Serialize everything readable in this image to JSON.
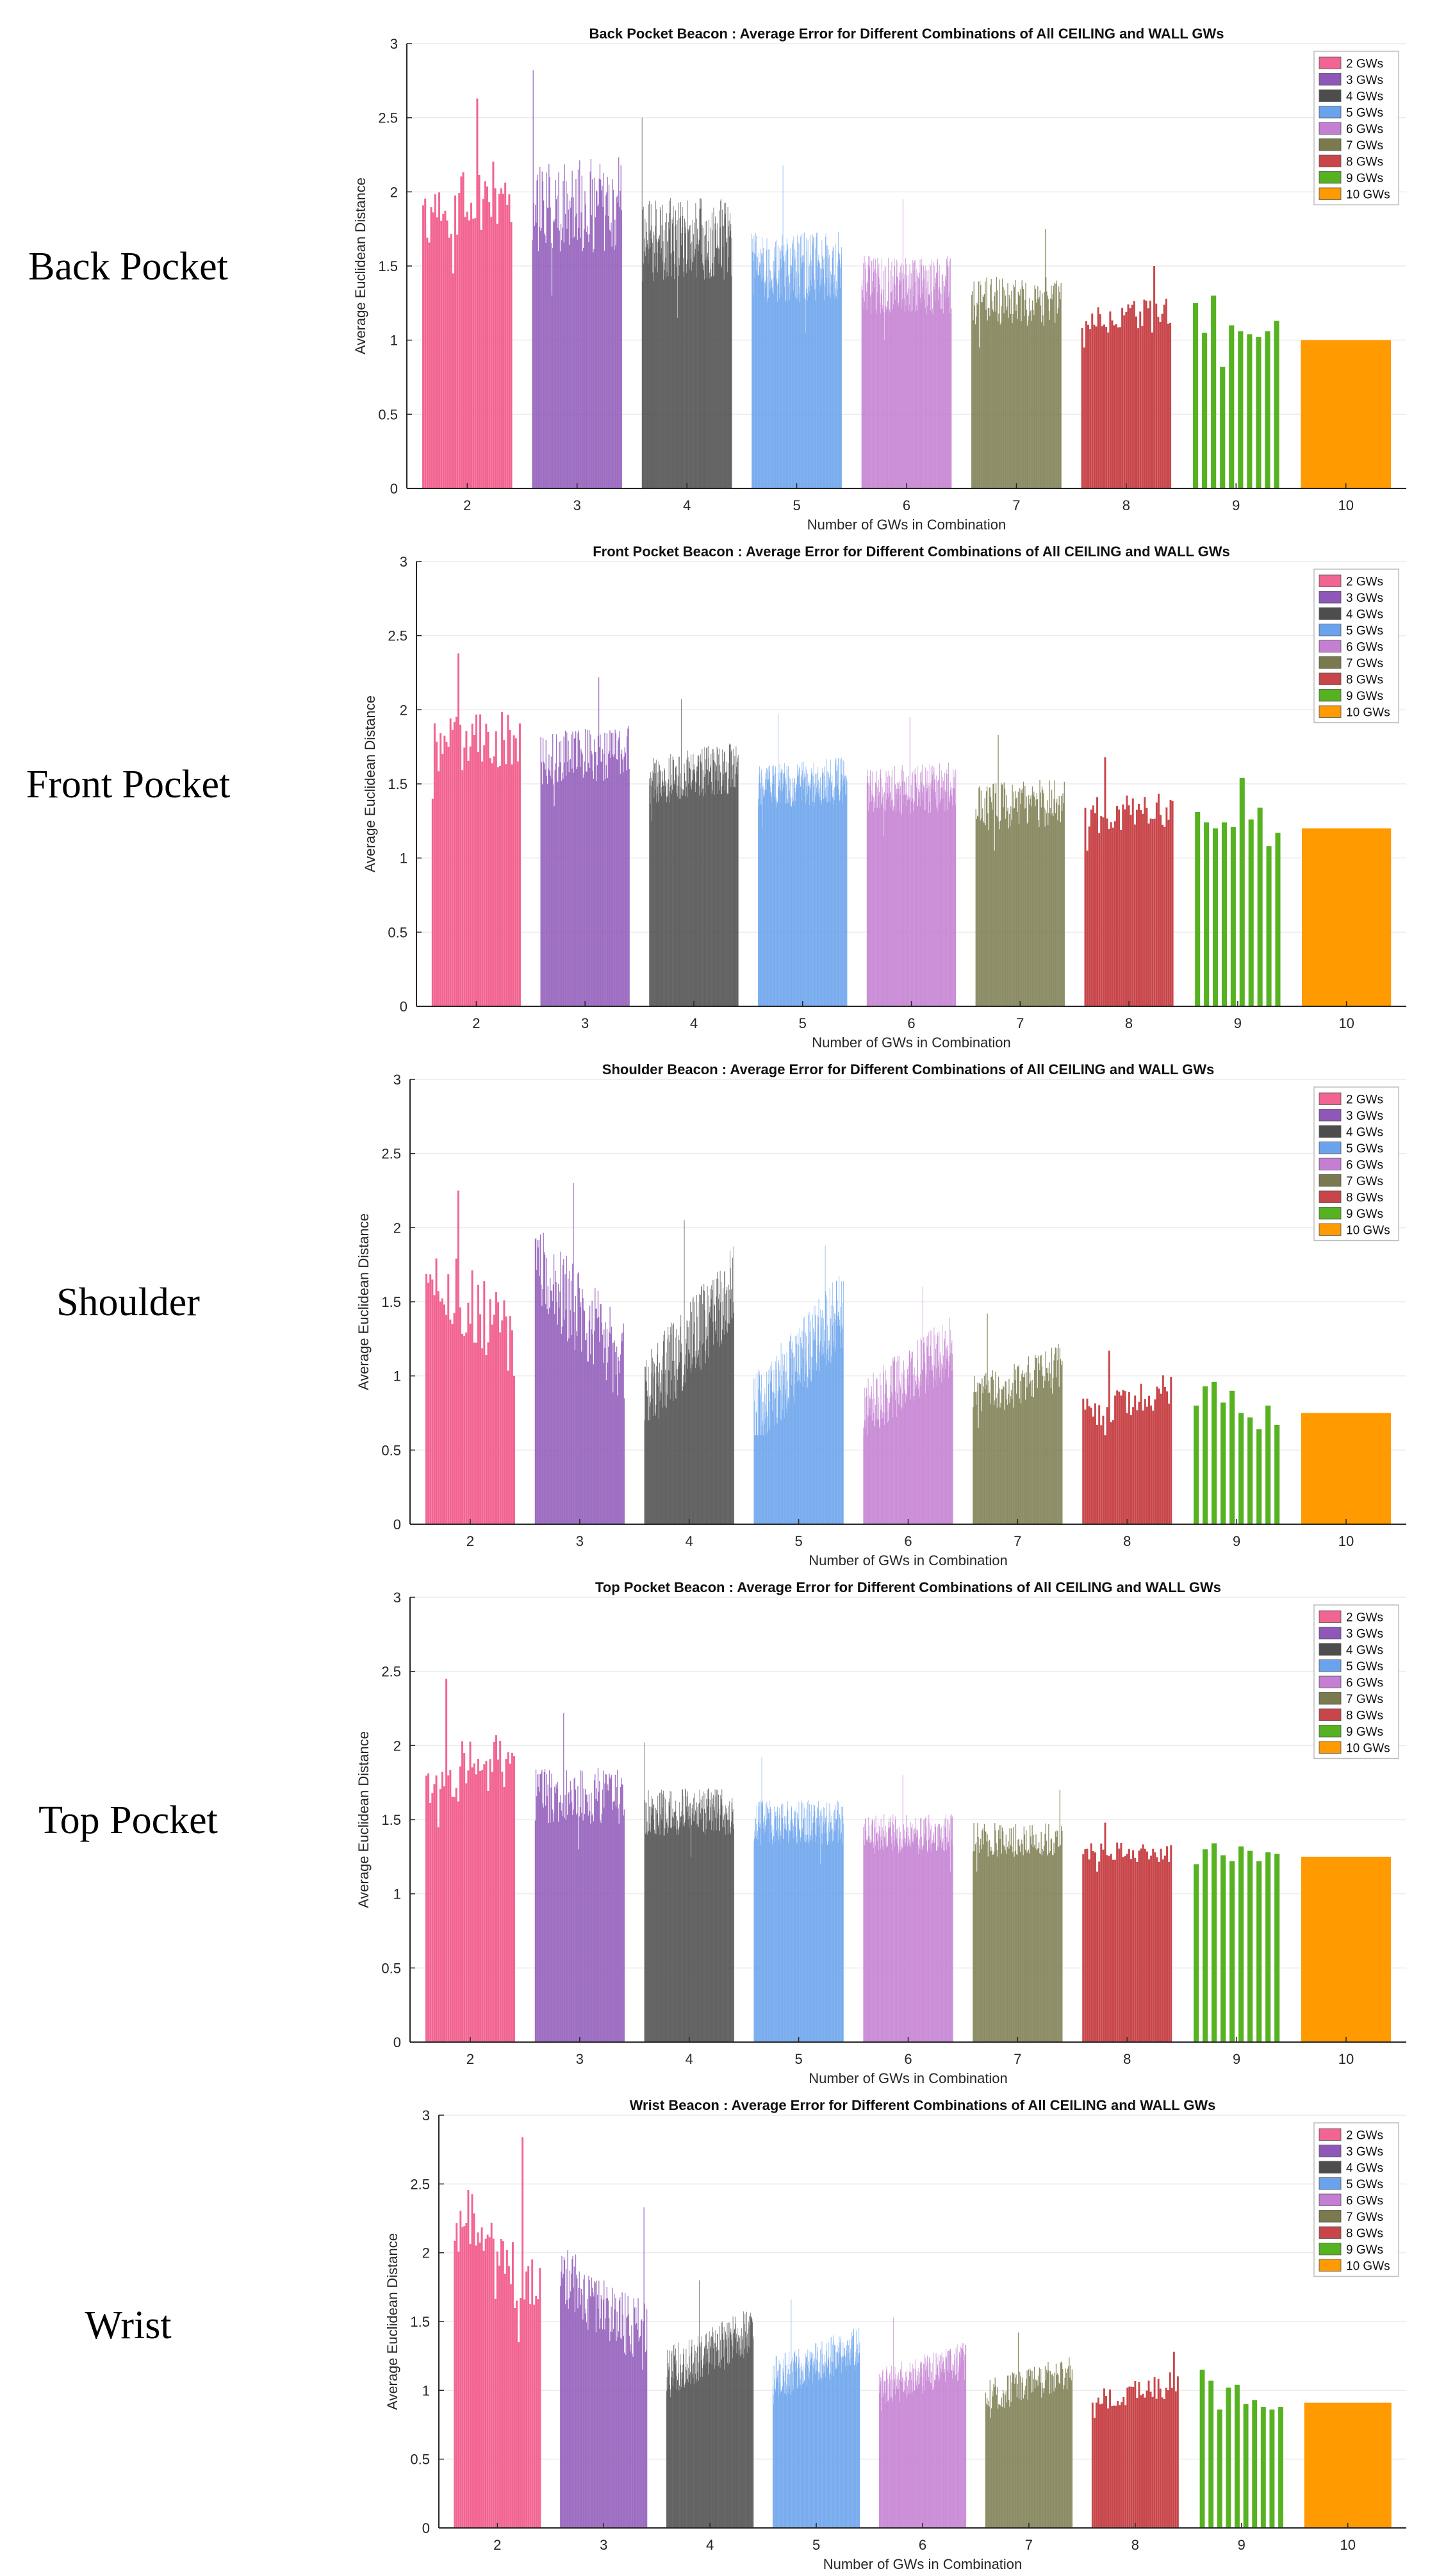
{
  "colors": {
    "2": "#f26491",
    "3": "#8e57b8",
    "4": "#4d4d4d",
    "5": "#6aa3ec",
    "6": "#c47fd2",
    "7": "#7a7a4e",
    "8": "#c8464a",
    "9": "#56b221",
    "10": "#ff9a00",
    "axis": "#262626",
    "grid": "#ebebeb"
  },
  "legend_labels": [
    "2 GWs",
    "3 GWs",
    "4 GWs",
    "5 GWs",
    "6 GWs",
    "7 GWs",
    "8 GWs",
    "9 GWs",
    "10 GWs"
  ],
  "chart_data": [
    {
      "type": "bar",
      "row_label": "Back Pocket",
      "title": "Back Pocket Beacon : Average Error for Different Combinations of All CEILING and WALL GWs",
      "xlabel": "Number of GWs in Combination",
      "ylabel": "Average Euclidean Distance",
      "ylim": [
        0,
        3
      ],
      "yticks": [
        "0",
        "0.5",
        "1",
        "1.5",
        "2",
        "2.5",
        "3"
      ],
      "xticks": [
        "2",
        "3",
        "4",
        "5",
        "6",
        "7",
        "8",
        "9",
        "10"
      ],
      "grid": true,
      "legend_position": "top-right",
      "series": [
        {
          "name": "2 GWs",
          "min": 1.45,
          "max": 2.63,
          "trend": 0.2,
          "count": 45
        },
        {
          "name": "3 GWs",
          "min": 1.3,
          "max": 2.82,
          "trend": 0.05,
          "count": 120
        },
        {
          "name": "4 GWs",
          "min": 1.15,
          "max": 2.5,
          "trend": 0.0,
          "count": 210
        },
        {
          "name": "5 GWs",
          "min": 1.05,
          "max": 2.18,
          "trend": 0.0,
          "count": 252
        },
        {
          "name": "6 GWs",
          "min": 1.0,
          "max": 1.95,
          "trend": 0.0,
          "count": 210
        },
        {
          "name": "7 GWs",
          "min": 0.95,
          "max": 1.75,
          "trend": 0.0,
          "count": 120
        },
        {
          "name": "8 GWs",
          "min": 0.95,
          "max": 1.5,
          "trend": 0.0,
          "count": 45
        },
        {
          "name": "9 GWs",
          "values": [
            1.25,
            1.05,
            1.3,
            0.82,
            1.1,
            1.06,
            1.04,
            1.02,
            1.06,
            1.13
          ]
        },
        {
          "name": "10 GWs",
          "values": [
            1.0
          ]
        }
      ]
    },
    {
      "type": "bar",
      "row_label": "Front Pocket",
      "title": "Front Pocket Beacon : Average Error for Different Combinations of All CEILING and WALL GWs",
      "xlabel": "Number of GWs in Combination",
      "ylabel": "Average Euclidean Distance",
      "ylim": [
        0,
        3
      ],
      "yticks": [
        "0",
        "0.5",
        "1",
        "1.5",
        "2",
        "2.5",
        "3"
      ],
      "xticks": [
        "2",
        "3",
        "4",
        "5",
        "6",
        "7",
        "8",
        "9",
        "10"
      ],
      "grid": true,
      "legend_position": "top-right",
      "series": [
        {
          "name": "2 GWs",
          "min": 1.4,
          "max": 2.38,
          "trend": 0.1,
          "count": 45
        },
        {
          "name": "3 GWs",
          "min": 1.35,
          "max": 2.22,
          "trend": 0.05,
          "count": 120
        },
        {
          "name": "4 GWs",
          "min": 1.25,
          "max": 2.07,
          "trend": 0.1,
          "count": 210
        },
        {
          "name": "5 GWs",
          "min": 1.2,
          "max": 1.97,
          "trend": 0.05,
          "count": 252
        },
        {
          "name": "6 GWs",
          "min": 1.15,
          "max": 1.95,
          "trend": 0.05,
          "count": 210
        },
        {
          "name": "7 GWs",
          "min": 1.05,
          "max": 1.83,
          "trend": 0.05,
          "count": 120
        },
        {
          "name": "8 GWs",
          "min": 1.05,
          "max": 1.68,
          "trend": 0.05,
          "count": 45
        },
        {
          "name": "9 GWs",
          "values": [
            1.31,
            1.24,
            1.2,
            1.24,
            1.21,
            1.54,
            1.26,
            1.34,
            1.08,
            1.17
          ]
        },
        {
          "name": "10 GWs",
          "values": [
            1.2
          ]
        }
      ]
    },
    {
      "type": "bar",
      "row_label": "Shoulder",
      "title": "Shoulder Beacon : Average Error for Different Combinations of All CEILING and WALL GWs",
      "xlabel": "Number of GWs in Combination",
      "ylabel": "Average Euclidean Distance",
      "ylim": [
        0,
        3
      ],
      "yticks": [
        "0",
        "0.5",
        "1",
        "1.5",
        "2",
        "2.5",
        "3"
      ],
      "xticks": [
        "2",
        "3",
        "4",
        "5",
        "6",
        "7",
        "8",
        "9",
        "10"
      ],
      "grid": true,
      "legend_position": "top-right",
      "series": [
        {
          "name": "2 GWs",
          "min": 1.0,
          "max": 2.25,
          "trend": -0.45,
          "count": 45
        },
        {
          "name": "3 GWs",
          "min": 0.85,
          "max": 2.3,
          "trend": -0.45,
          "count": 120
        },
        {
          "name": "4 GWs",
          "min": 0.7,
          "max": 2.05,
          "trend": 0.55,
          "count": 210
        },
        {
          "name": "5 GWs",
          "min": 0.6,
          "max": 1.88,
          "trend": 0.55,
          "count": 252
        },
        {
          "name": "6 GWs",
          "min": 0.6,
          "max": 1.6,
          "trend": 0.45,
          "count": 210
        },
        {
          "name": "7 GWs",
          "min": 0.65,
          "max": 1.42,
          "trend": 0.3,
          "count": 120
        },
        {
          "name": "8 GWs",
          "min": 0.6,
          "max": 1.17,
          "trend": 0.3,
          "count": 45
        },
        {
          "name": "9 GWs",
          "values": [
            0.8,
            0.93,
            0.96,
            0.82,
            0.9,
            0.75,
            0.72,
            0.64,
            0.8,
            0.67
          ]
        },
        {
          "name": "10 GWs",
          "values": [
            0.75
          ]
        }
      ]
    },
    {
      "type": "bar",
      "row_label": "Top Pocket",
      "title": "Top Pocket Beacon : Average Error for Different Combinations of All CEILING and WALL GWs",
      "xlabel": "Number of GWs in Combination",
      "ylabel": "Average Euclidean Distance",
      "ylim": [
        0,
        3
      ],
      "yticks": [
        "0",
        "0.5",
        "1",
        "1.5",
        "2",
        "2.5",
        "3"
      ],
      "xticks": [
        "2",
        "3",
        "4",
        "5",
        "6",
        "7",
        "8",
        "9",
        "10"
      ],
      "grid": true,
      "legend_position": "top-right",
      "series": [
        {
          "name": "2 GWs",
          "min": 1.45,
          "max": 2.45,
          "trend": 0.15,
          "count": 45
        },
        {
          "name": "3 GWs",
          "min": 1.3,
          "max": 2.22,
          "trend": 0.0,
          "count": 120
        },
        {
          "name": "4 GWs",
          "min": 1.25,
          "max": 2.02,
          "trend": 0.0,
          "count": 210
        },
        {
          "name": "5 GWs",
          "min": 1.2,
          "max": 1.92,
          "trend": 0.0,
          "count": 252
        },
        {
          "name": "6 GWs",
          "min": 1.15,
          "max": 1.8,
          "trend": 0.0,
          "count": 210
        },
        {
          "name": "7 GWs",
          "min": 1.15,
          "max": 1.7,
          "trend": 0.0,
          "count": 120
        },
        {
          "name": "8 GWs",
          "min": 1.15,
          "max": 1.48,
          "trend": 0.0,
          "count": 45
        },
        {
          "name": "9 GWs",
          "values": [
            1.2,
            1.3,
            1.34,
            1.26,
            1.22,
            1.32,
            1.29,
            1.22,
            1.28,
            1.27
          ]
        },
        {
          "name": "10 GWs",
          "values": [
            1.25
          ]
        }
      ]
    },
    {
      "type": "bar",
      "row_label": "Wrist",
      "title": "Wrist Beacon : Average Error for Different Combinations of All CEILING and WALL GWs",
      "xlabel": "Number of GWs in Combination",
      "ylabel": "Average Euclidean Distance",
      "ylim": [
        0,
        3
      ],
      "yticks": [
        "0",
        "0.5",
        "1",
        "1.5",
        "2",
        "2.5",
        "3"
      ],
      "xticks": [
        "2",
        "3",
        "4",
        "5",
        "6",
        "7",
        "8",
        "9",
        "10"
      ],
      "grid": true,
      "legend_position": "top-right",
      "series": [
        {
          "name": "2 GWs",
          "min": 1.35,
          "max": 2.84,
          "trend": -0.45,
          "count": 45
        },
        {
          "name": "3 GWs",
          "min": 1.15,
          "max": 2.33,
          "trend": -0.35,
          "count": 120
        },
        {
          "name": "4 GWs",
          "min": 0.95,
          "max": 1.8,
          "trend": 0.35,
          "count": 210
        },
        {
          "name": "5 GWs",
          "min": 0.9,
          "max": 1.66,
          "trend": 0.3,
          "count": 252
        },
        {
          "name": "6 GWs",
          "min": 0.85,
          "max": 1.53,
          "trend": 0.3,
          "count": 210
        },
        {
          "name": "7 GWs",
          "min": 0.8,
          "max": 1.42,
          "trend": 0.3,
          "count": 120
        },
        {
          "name": "8 GWs",
          "min": 0.8,
          "max": 1.28,
          "trend": 0.25,
          "count": 45
        },
        {
          "name": "9 GWs",
          "values": [
            1.15,
            1.07,
            0.86,
            1.02,
            1.04,
            0.9,
            0.93,
            0.88,
            0.86,
            0.88
          ]
        },
        {
          "name": "10 GWs",
          "values": [
            0.91
          ]
        }
      ]
    }
  ]
}
